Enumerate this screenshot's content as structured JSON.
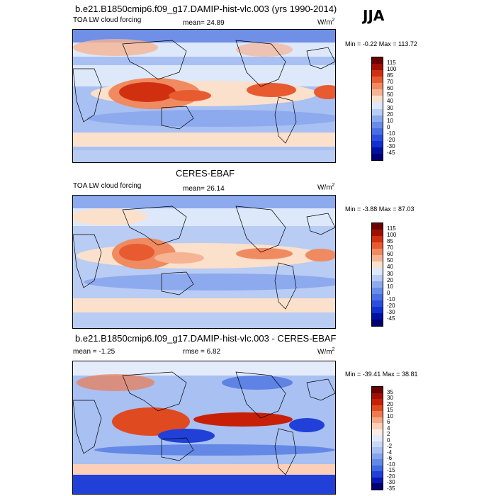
{
  "season": "JJA",
  "units_label": "W/m",
  "units_exp": "2",
  "panels": [
    {
      "title": "b.e21.B1850cmip6.f09_g17.DAMIP-hist-vlc.003 (yrs 1990-2014)",
      "left_label": "TOA LW cloud forcing",
      "center_label": "mean=  24.89",
      "minmax": "Min =  -0.22 Max = 113.72",
      "colorbar_labels": [
        "115",
        "100",
        "85",
        "70",
        "60",
        "50",
        "40",
        "30",
        "20",
        "10",
        "0",
        "-10",
        "-20",
        "-30",
        "-45"
      ]
    },
    {
      "title": "CERES-EBAF",
      "left_label": "TOA LW cloud forcing",
      "center_label": "mean=  26.14",
      "minmax": "Min =  -3.88 Max =  87.03",
      "colorbar_labels": [
        "115",
        "100",
        "85",
        "70",
        "60",
        "50",
        "40",
        "30",
        "20",
        "10",
        "0",
        "-10",
        "-20",
        "-30",
        "-45"
      ]
    },
    {
      "title": "b.e21.B1850cmip6.f09_g17.DAMIP-hist-vlc.003 - CERES-EBAF",
      "left_label": "mean =  -1.25",
      "center_label": "rmse =   6.82",
      "minmax": "Min = -39.41 Max =  38.81",
      "colorbar_labels": [
        "35",
        "30",
        "20",
        "15",
        "10",
        "6",
        "4",
        "2",
        "0",
        "-2",
        "-4",
        "-6",
        "-10",
        "-15",
        "-20",
        "-30",
        "-35"
      ]
    }
  ],
  "colors": {
    "abs_scale": [
      "#6a0000",
      "#a01000",
      "#d03010",
      "#e85a30",
      "#f08a60",
      "#f6b494",
      "#fbe0cc",
      "#dde8fb",
      "#b8ccf4",
      "#8eaaee",
      "#6a8ce8",
      "#4a6ee4",
      "#2c4ee0",
      "#1030d0",
      "#0010a0",
      "#000070"
    ],
    "diff_scale": [
      "#6a0000",
      "#a01000",
      "#c82008",
      "#e04a20",
      "#ee7a50",
      "#f6a886",
      "#fbcfb8",
      "#fdeee4",
      "#e4ecfc",
      "#c8d8f8",
      "#a8c0f2",
      "#84a4ec",
      "#6488e6",
      "#4068e0",
      "#2040d8",
      "#0818b0",
      "#000070"
    ]
  }
}
